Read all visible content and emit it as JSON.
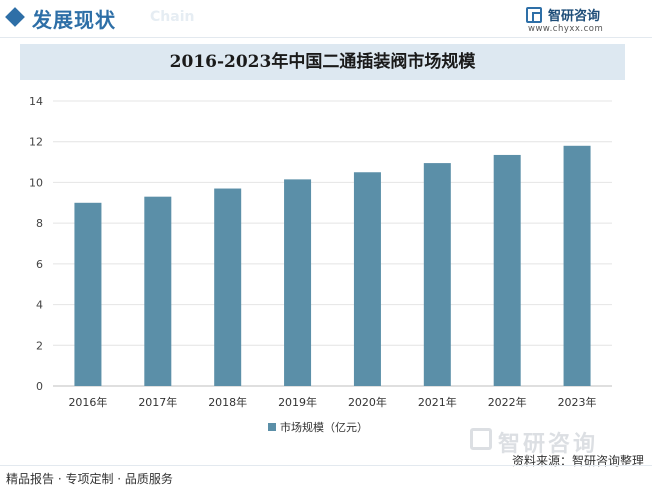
{
  "header": {
    "section_title": "发展现状",
    "ghost_text": "Chain",
    "brand_name": "智研咨询",
    "brand_url": "www.chyxx.com"
  },
  "footer": {
    "left_text": "精品报告 · 专项定制 · 品质服务",
    "source_text": "资料来源：智研咨询整理",
    "watermark": "智研咨询"
  },
  "chart_data": {
    "type": "bar",
    "title": "2016-2023年中国二通插装阀市场规模",
    "categories": [
      "2016年",
      "2017年",
      "2018年",
      "2019年",
      "2020年",
      "2021年",
      "2022年",
      "2023年"
    ],
    "series": [
      {
        "name": "市场规模（亿元）",
        "values": [
          9.0,
          9.3,
          9.7,
          10.15,
          10.5,
          10.95,
          11.35,
          11.8
        ]
      }
    ],
    "ylim": [
      0,
      14
    ],
    "yticks": [
      0,
      2,
      4,
      6,
      8,
      10,
      12,
      14
    ],
    "grid": true,
    "legend": "bottom-center",
    "bar_color": "#5b8fa8"
  }
}
